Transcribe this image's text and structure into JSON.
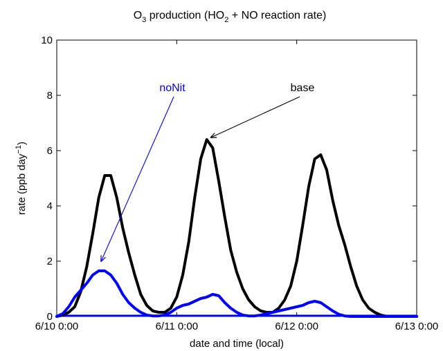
{
  "chart_data": {
    "type": "line",
    "title_parts": [
      "O",
      "3",
      " production (HO",
      "2",
      " + NO reaction rate)"
    ],
    "xlabel": "date and time (local)",
    "ylabel_parts": [
      "rate (ppb day",
      "−1",
      ")"
    ],
    "xlim": [
      0,
      3
    ],
    "ylim": [
      0,
      10
    ],
    "xticks": [
      0,
      1,
      2,
      3
    ],
    "xtick_labels": [
      "6/10 0:00",
      "6/11 0:00",
      "6/12 0:00",
      "6/13 0:00"
    ],
    "yticks": [
      0,
      2,
      4,
      6,
      8,
      10
    ],
    "ytick_labels": [
      "0",
      "2",
      "4",
      "6",
      "8",
      "10"
    ],
    "grid": false,
    "series": [
      {
        "name": "base",
        "color": "#000000",
        "x": [
          0.0,
          0.05,
          0.1,
          0.15,
          0.2,
          0.25,
          0.3,
          0.35,
          0.4,
          0.45,
          0.5,
          0.55,
          0.6,
          0.65,
          0.7,
          0.75,
          0.8,
          0.85,
          0.9,
          0.95,
          1.0,
          1.05,
          1.1,
          1.15,
          1.2,
          1.25,
          1.3,
          1.35,
          1.4,
          1.45,
          1.5,
          1.55,
          1.6,
          1.65,
          1.7,
          1.75,
          1.8,
          1.85,
          1.9,
          1.95,
          2.0,
          2.05,
          2.1,
          2.15,
          2.2,
          2.25,
          2.3,
          2.35,
          2.4,
          2.45,
          2.5,
          2.55,
          2.6,
          2.65,
          2.7,
          2.75,
          2.8,
          2.85,
          2.9,
          2.95,
          3.0
        ],
        "values": [
          0.0,
          0.05,
          0.15,
          0.35,
          0.9,
          1.8,
          3.0,
          4.3,
          5.1,
          5.1,
          4.3,
          3.2,
          2.3,
          1.5,
          0.8,
          0.4,
          0.2,
          0.15,
          0.15,
          0.3,
          0.7,
          1.5,
          2.7,
          4.3,
          5.7,
          6.4,
          6.1,
          4.9,
          3.6,
          2.4,
          1.6,
          1.0,
          0.6,
          0.35,
          0.2,
          0.15,
          0.15,
          0.3,
          0.6,
          1.1,
          2.0,
          3.3,
          4.7,
          5.7,
          5.85,
          5.3,
          4.2,
          3.3,
          2.6,
          1.8,
          1.1,
          0.6,
          0.3,
          0.15,
          0.05,
          0.0,
          0.0,
          0.0,
          0.0,
          0.0,
          0.0
        ]
      },
      {
        "name": "noNit",
        "color": "#0000ff",
        "x": [
          0.0,
          0.05,
          0.1,
          0.15,
          0.2,
          0.25,
          0.3,
          0.35,
          0.4,
          0.45,
          0.5,
          0.55,
          0.6,
          0.65,
          0.7,
          0.75,
          0.8,
          0.85,
          0.9,
          0.95,
          1.0,
          1.05,
          1.1,
          1.15,
          1.2,
          1.25,
          1.3,
          1.35,
          1.4,
          1.45,
          1.5,
          1.55,
          1.6,
          1.65,
          1.7,
          1.75,
          1.8,
          1.85,
          1.9,
          1.95,
          2.0,
          2.05,
          2.1,
          2.15,
          2.2,
          2.25,
          2.3,
          2.35,
          2.4,
          2.45,
          2.5,
          2.55,
          2.6,
          2.65,
          2.7,
          2.75,
          2.8,
          2.85,
          2.9,
          2.95,
          3.0
        ],
        "values": [
          0.0,
          0.1,
          0.35,
          0.7,
          0.95,
          1.2,
          1.5,
          1.65,
          1.65,
          1.5,
          1.2,
          0.8,
          0.5,
          0.3,
          0.15,
          0.05,
          0.02,
          0.02,
          0.05,
          0.15,
          0.3,
          0.4,
          0.45,
          0.55,
          0.65,
          0.7,
          0.8,
          0.75,
          0.5,
          0.3,
          0.15,
          0.05,
          0.02,
          0.02,
          0.05,
          0.1,
          0.15,
          0.2,
          0.25,
          0.3,
          0.35,
          0.4,
          0.5,
          0.55,
          0.5,
          0.35,
          0.2,
          0.08,
          0.02,
          0.0,
          0.0,
          0.0,
          0.0,
          0.0,
          0.0,
          0.0,
          0.0,
          0.0,
          0.0,
          0.0,
          0.0
        ]
      }
    ],
    "zero_line": {
      "y": 0,
      "color": "#0000ff"
    },
    "annotations": [
      {
        "text": "base",
        "color": "#000000",
        "target_x": 1.25,
        "target_y": 6.4
      },
      {
        "text": "noNit",
        "color": "#0000ff",
        "target_x": 0.37,
        "target_y": 1.75
      }
    ]
  }
}
